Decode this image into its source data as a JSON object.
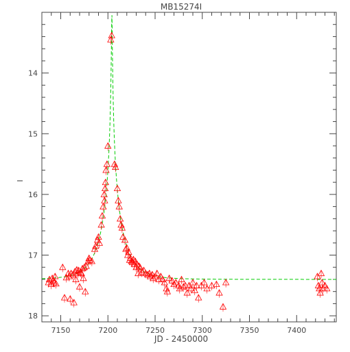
{
  "chart_data": {
    "type": "scatter",
    "title": "MB15274I",
    "xlabel": "JD - 2450000",
    "ylabel": "I",
    "xlim": [
      7130,
      7442
    ],
    "ylim": [
      18.1,
      13.0
    ],
    "y_inverted": true,
    "x_ticks": [
      7150,
      7200,
      7250,
      7300,
      7350,
      7400
    ],
    "y_ticks": [
      14,
      15,
      16,
      17,
      18
    ],
    "grid": false,
    "legend": "none",
    "colors": {
      "points": "#ff0000",
      "model": "#00cc00",
      "axes": "#444444"
    },
    "series": [
      {
        "marker": "triangle",
        "points": [
          [
            7137,
            17.45
          ],
          [
            7138,
            17.4
          ],
          [
            7140,
            17.48
          ],
          [
            7141,
            17.38
          ],
          [
            7142,
            17.42
          ],
          [
            7143,
            17.45
          ],
          [
            7144,
            17.35
          ],
          [
            7145,
            17.47
          ],
          [
            7152,
            17.2
          ],
          [
            7154,
            17.7
          ],
          [
            7156,
            17.37
          ],
          [
            7158,
            17.3
          ],
          [
            7159,
            17.35
          ],
          [
            7160,
            17.72
          ],
          [
            7161,
            17.3
          ],
          [
            7163,
            17.32
          ],
          [
            7164,
            17.78
          ],
          [
            7165,
            17.27
          ],
          [
            7166,
            17.4
          ],
          [
            7167,
            17.24
          ],
          [
            7168,
            17.3
          ],
          [
            7169,
            17.25
          ],
          [
            7170,
            17.52
          ],
          [
            7171,
            17.28
          ],
          [
            7172,
            17.3
          ],
          [
            7173,
            17.22
          ],
          [
            7174,
            17.38
          ],
          [
            7175,
            17.2
          ],
          [
            7176,
            17.6
          ],
          [
            7177,
            17.18
          ],
          [
            7179,
            17.1
          ],
          [
            7180,
            17.05
          ],
          [
            7181,
            17.08
          ],
          [
            7183,
            17.1
          ],
          [
            7186,
            16.9
          ],
          [
            7187,
            16.85
          ],
          [
            7189,
            16.75
          ],
          [
            7190,
            16.7
          ],
          [
            7191,
            16.8
          ],
          [
            7193,
            16.5
          ],
          [
            7194,
            16.35
          ],
          [
            7195,
            16.2
          ],
          [
            7196,
            16.0
          ],
          [
            7196.5,
            16.1
          ],
          [
            7197,
            15.9
          ],
          [
            7197.5,
            15.8
          ],
          [
            7198,
            15.6
          ],
          [
            7199,
            15.5
          ],
          [
            7200,
            15.2
          ],
          [
            7203,
            13.45
          ],
          [
            7204,
            13.38
          ],
          [
            7207,
            15.5
          ],
          [
            7208,
            15.55
          ],
          [
            7210,
            15.9
          ],
          [
            7211,
            16.1
          ],
          [
            7212,
            16.2
          ],
          [
            7213,
            16.4
          ],
          [
            7214,
            16.5
          ],
          [
            7215,
            16.55
          ],
          [
            7216,
            16.7
          ],
          [
            7218,
            16.75
          ],
          [
            7219,
            16.9
          ],
          [
            7220,
            16.88
          ],
          [
            7221,
            17.0
          ],
          [
            7222,
            16.95
          ],
          [
            7223,
            17.08
          ],
          [
            7224,
            17.05
          ],
          [
            7225,
            17.1
          ],
          [
            7226,
            17.12
          ],
          [
            7227,
            17.07
          ],
          [
            7228,
            17.15
          ],
          [
            7229,
            17.1
          ],
          [
            7230,
            17.2
          ],
          [
            7231,
            17.15
          ],
          [
            7232,
            17.3
          ],
          [
            7233,
            17.18
          ],
          [
            7234,
            17.2
          ],
          [
            7236,
            17.28
          ],
          [
            7238,
            17.25
          ],
          [
            7240,
            17.3
          ],
          [
            7242,
            17.32
          ],
          [
            7244,
            17.3
          ],
          [
            7245,
            17.35
          ],
          [
            7247,
            17.32
          ],
          [
            7248,
            17.38
          ],
          [
            7250,
            17.35
          ],
          [
            7252,
            17.3
          ],
          [
            7254,
            17.4
          ],
          [
            7256,
            17.35
          ],
          [
            7258,
            17.4
          ],
          [
            7260,
            17.45
          ],
          [
            7262,
            17.55
          ],
          [
            7263,
            17.6
          ],
          [
            7265,
            17.38
          ],
          [
            7268,
            17.42
          ],
          [
            7270,
            17.48
          ],
          [
            7272,
            17.45
          ],
          [
            7275,
            17.5
          ],
          [
            7276,
            17.55
          ],
          [
            7278,
            17.4
          ],
          [
            7280,
            17.52
          ],
          [
            7282,
            17.5
          ],
          [
            7284,
            17.62
          ],
          [
            7286,
            17.5
          ],
          [
            7288,
            17.55
          ],
          [
            7290,
            17.45
          ],
          [
            7292,
            17.58
          ],
          [
            7294,
            17.5
          ],
          [
            7296,
            17.7
          ],
          [
            7299,
            17.5
          ],
          [
            7302,
            17.45
          ],
          [
            7305,
            17.55
          ],
          [
            7310,
            17.5
          ],
          [
            7315,
            17.48
          ],
          [
            7318,
            17.62
          ],
          [
            7322,
            17.85
          ],
          [
            7325,
            17.45
          ],
          [
            7422,
            17.35
          ],
          [
            7423,
            17.5
          ],
          [
            7424,
            17.55
          ],
          [
            7425,
            17.62
          ],
          [
            7426,
            17.3
          ],
          [
            7427,
            17.45
          ],
          [
            7428,
            17.55
          ],
          [
            7430,
            17.5
          ],
          [
            7432,
            17.55
          ]
        ]
      },
      {
        "name": "",
        "style": "dashed-line",
        "model": "point-lens",
        "t0": 7204.2,
        "u0": 0.018,
        "tE": 22,
        "baseline": 17.4
      }
    ]
  }
}
